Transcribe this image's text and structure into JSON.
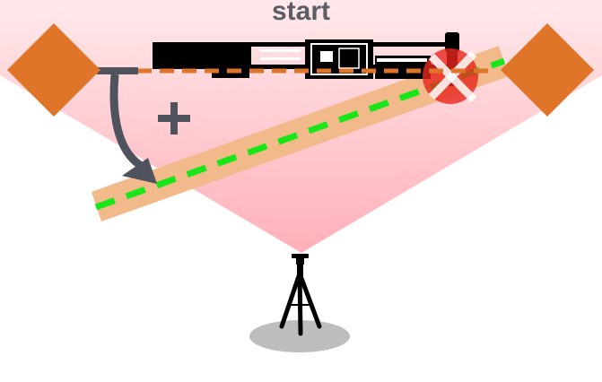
{
  "diagram": {
    "title": "start",
    "colors": {
      "title": "#5b5e66",
      "fan_light": "#ffe9ec",
      "fan_dark": "#ffb0b8",
      "marker": "#e07428",
      "beam_band": "#f2b98a",
      "beam_dash": "#19e619",
      "reference_dash": "#e07428",
      "arrow": "#4f535d",
      "plus": "#4f535d",
      "no_symbol": "#e8251c",
      "no_symbol_cross": "#ffffff",
      "machine": "#000000",
      "tripod": "#000000",
      "shadow": "#bdbdbd"
    },
    "icons": {
      "left_marker": "orange-diamond-marker",
      "right_marker": "orange-diamond-marker",
      "laser_device": "tripod-laser-level",
      "machine": "machine-rail-silhouette",
      "rotation": "curved-arrow-icon",
      "add": "plus-icon",
      "invalid": "red-cross-icon"
    }
  }
}
